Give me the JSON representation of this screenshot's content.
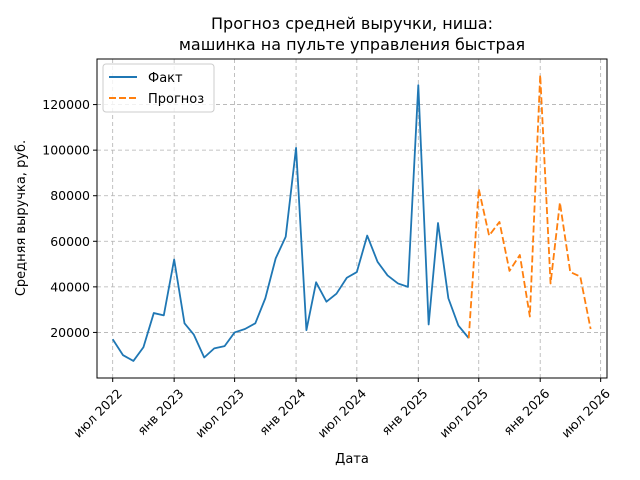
{
  "chart_data": {
    "type": "line",
    "title": [
      "Прогноз средней выручки, ниша:",
      "машинка на пульте управления быстрая"
    ],
    "xlabel": "Дата",
    "ylabel": "Средняя выручка, руб.",
    "grid": true,
    "legend_position": "top-left",
    "xlim": [
      "2022-05-15",
      "2026-07-20"
    ],
    "ylim": [
      0,
      140000
    ],
    "yticks": [
      20000,
      40000,
      60000,
      80000,
      100000,
      120000
    ],
    "xticks": [
      {
        "date": "2022-07-01",
        "label": "июл 2022"
      },
      {
        "date": "2023-01-01",
        "label": "янв 2023"
      },
      {
        "date": "2023-07-01",
        "label": "июл 2023"
      },
      {
        "date": "2024-01-01",
        "label": "янв 2024"
      },
      {
        "date": "2024-07-01",
        "label": "июл 2024"
      },
      {
        "date": "2025-01-01",
        "label": "янв 2025"
      },
      {
        "date": "2025-07-01",
        "label": "июл 2025"
      },
      {
        "date": "2026-01-01",
        "label": "янв 2026"
      },
      {
        "date": "2026-07-01",
        "label": "июл 2026"
      }
    ],
    "series": [
      {
        "name": "Факт",
        "color": "#1f77b4",
        "style": "solid",
        "points": [
          [
            "2022-07-01",
            17000
          ],
          [
            "2022-08-01",
            10000
          ],
          [
            "2022-09-01",
            7500
          ],
          [
            "2022-10-01",
            13500
          ],
          [
            "2022-11-01",
            28500
          ],
          [
            "2022-12-01",
            27500
          ],
          [
            "2023-01-01",
            52000
          ],
          [
            "2023-02-01",
            24000
          ],
          [
            "2023-03-01",
            19000
          ],
          [
            "2023-04-01",
            9000
          ],
          [
            "2023-05-01",
            13000
          ],
          [
            "2023-06-01",
            14000
          ],
          [
            "2023-07-01",
            20000
          ],
          [
            "2023-08-01",
            21500
          ],
          [
            "2023-09-01",
            24000
          ],
          [
            "2023-10-01",
            35000
          ],
          [
            "2023-11-01",
            52500
          ],
          [
            "2023-12-01",
            62000
          ],
          [
            "2024-01-01",
            101000
          ],
          [
            "2024-02-01",
            21000
          ],
          [
            "2024-03-01",
            42000
          ],
          [
            "2024-04-01",
            33500
          ],
          [
            "2024-05-01",
            37000
          ],
          [
            "2024-06-01",
            44000
          ],
          [
            "2024-07-01",
            46500
          ],
          [
            "2024-08-01",
            62500
          ],
          [
            "2024-09-01",
            51000
          ],
          [
            "2024-10-01",
            45000
          ],
          [
            "2024-11-01",
            41500
          ],
          [
            "2024-12-01",
            40000
          ],
          [
            "2025-01-01",
            128500
          ],
          [
            "2025-02-01",
            23500
          ],
          [
            "2025-03-01",
            68000
          ],
          [
            "2025-04-01",
            35000
          ],
          [
            "2025-05-01",
            23000
          ],
          [
            "2025-06-01",
            17500
          ]
        ]
      },
      {
        "name": "Прогноз",
        "color": "#ff7f0e",
        "style": "dashed",
        "points": [
          [
            "2025-06-01",
            17500
          ],
          [
            "2025-07-01",
            83000
          ],
          [
            "2025-08-01",
            62500
          ],
          [
            "2025-09-01",
            68500
          ],
          [
            "2025-10-01",
            47000
          ],
          [
            "2025-11-01",
            54000
          ],
          [
            "2025-12-01",
            27000
          ],
          [
            "2026-01-01",
            133000
          ],
          [
            "2026-02-01",
            41500
          ],
          [
            "2026-03-01",
            77000
          ],
          [
            "2026-04-01",
            46500
          ],
          [
            "2026-05-01",
            44500
          ],
          [
            "2026-06-01",
            21500
          ]
        ]
      }
    ]
  }
}
